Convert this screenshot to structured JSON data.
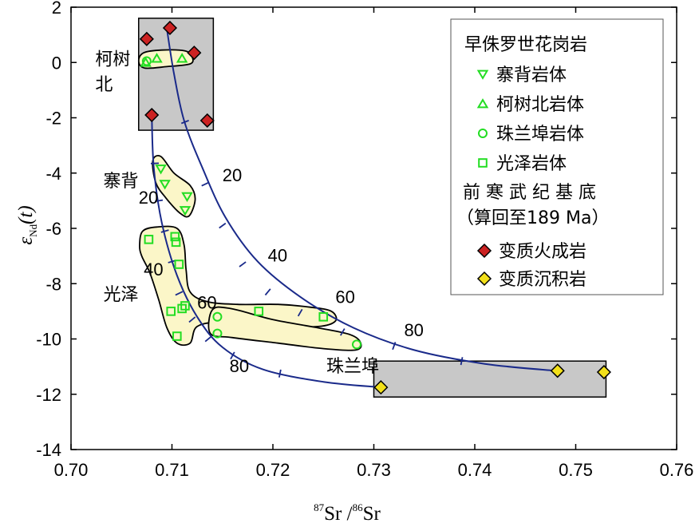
{
  "chart_data": {
    "type": "scatter",
    "xlabel": {
      "sup1": "87",
      "main1": "Sr",
      "sep": " /",
      "sup2": "86",
      "main2": "Sr"
    },
    "ylabel": {
      "eps": "ε",
      "sub": "Nd",
      "rest": "(t)"
    },
    "xlim": [
      0.7,
      0.76
    ],
    "ylim": [
      -14,
      2
    ],
    "xticks": [
      0.7,
      0.71,
      0.72,
      0.73,
      0.74,
      0.75,
      0.76
    ],
    "yticks": [
      2,
      0,
      -2,
      -4,
      -6,
      -8,
      -10,
      -12,
      -14
    ],
    "xtick_labels": [
      "0.70",
      "0.71",
      "0.72",
      "0.73",
      "0.74",
      "0.75",
      "0.76"
    ],
    "ytick_labels": [
      "2",
      "0",
      "-2",
      "-4",
      "-6",
      "-8",
      "-10",
      "-12",
      "-14"
    ],
    "legend": {
      "title": "早侏罗世花岗岩",
      "entries": [
        {
          "label": "寨背岩体",
          "marker": "triangle-down",
          "color": "#22dd22"
        },
        {
          "label": "柯树北岩体",
          "marker": "triangle-up",
          "color": "#22dd22"
        },
        {
          "label": "珠兰埠岩体",
          "marker": "circle",
          "color": "#22dd22"
        },
        {
          "label": "光泽岩体",
          "marker": "square",
          "color": "#22dd22"
        }
      ],
      "basement_title": "前 寒 武 纪 基 底",
      "basement_subtitle": "（算回至189 Ma）",
      "basement_entries": [
        {
          "label": "变质火成岩",
          "marker": "diamond",
          "color": "#cc2222"
        },
        {
          "label": "变质沉积岩",
          "marker": "diamond",
          "color": "#f2e01a"
        }
      ]
    },
    "region_labels": [
      {
        "text": "柯树",
        "x": 0.7024,
        "y": -0.1
      },
      {
        "text": "北",
        "x": 0.7024,
        "y": -1.0
      },
      {
        "text": "寨背",
        "x": 0.7032,
        "y": -4.5
      },
      {
        "text": "光泽",
        "x": 0.7032,
        "y": -8.6
      },
      {
        "text": "珠兰埠",
        "x": 0.7253,
        "y": -11.2
      }
    ],
    "curve_labels": [
      {
        "text": "20",
        "x": 0.715,
        "y": -4.3
      },
      {
        "text": "20",
        "x": 0.7067,
        "y": -5.1
      },
      {
        "text": "40",
        "x": 0.7195,
        "y": -7.2
      },
      {
        "text": "40",
        "x": 0.7072,
        "y": -7.7
      },
      {
        "text": "60",
        "x": 0.7262,
        "y": -8.7
      },
      {
        "text": "60",
        "x": 0.7125,
        "y": -8.9
      },
      {
        "text": "80",
        "x": 0.733,
        "y": -9.9
      },
      {
        "text": "80",
        "x": 0.7157,
        "y": -11.2
      }
    ],
    "series": [
      {
        "name": "寨背岩体",
        "marker": "triangle-down",
        "color": "#22dd22",
        "points": [
          [
            0.7089,
            -3.85
          ],
          [
            0.7093,
            -4.4
          ],
          [
            0.7115,
            -4.85
          ],
          [
            0.7113,
            -5.35
          ]
        ]
      },
      {
        "name": "柯树北岩体",
        "marker": "triangle-up",
        "color": "#22dd22",
        "points": [
          [
            0.7074,
            0.0
          ],
          [
            0.7085,
            0.15
          ],
          [
            0.711,
            0.15
          ]
        ]
      },
      {
        "name": "珠兰埠岩体",
        "marker": "circle",
        "color": "#22dd22",
        "points": [
          [
            0.7075,
            0.05
          ],
          [
            0.7145,
            -9.2
          ],
          [
            0.7145,
            -9.8
          ],
          [
            0.7283,
            -10.2
          ]
        ]
      },
      {
        "name": "光泽岩体",
        "marker": "square",
        "color": "#22dd22",
        "points": [
          [
            0.7077,
            -6.4
          ],
          [
            0.7103,
            -6.3
          ],
          [
            0.7104,
            -6.5
          ],
          [
            0.7107,
            -7.3
          ],
          [
            0.7105,
            -9.9
          ],
          [
            0.711,
            -8.9
          ],
          [
            0.7113,
            -8.8
          ],
          [
            0.7099,
            -9.0
          ],
          [
            0.7186,
            -9.0
          ],
          [
            0.725,
            -9.2
          ]
        ]
      },
      {
        "name": "变质火成岩",
        "marker": "diamond",
        "color": "#cc2222",
        "points": [
          [
            0.7075,
            0.85
          ],
          [
            0.7098,
            1.25
          ],
          [
            0.7122,
            0.35
          ],
          [
            0.708,
            -1.9
          ],
          [
            0.7135,
            -2.1
          ]
        ]
      },
      {
        "name": "变质沉积岩",
        "marker": "diamond",
        "color": "#f2e01a",
        "points": [
          [
            0.7307,
            -11.75
          ],
          [
            0.7482,
            -11.15
          ],
          [
            0.7528,
            -11.2
          ]
        ]
      }
    ],
    "mixing_curves": [
      {
        "name": "curve-outer",
        "points": [
          [
            0.7095,
            1.2
          ],
          [
            0.7102,
            -0.4
          ],
          [
            0.7112,
            -2.1
          ],
          [
            0.713,
            -3.8
          ],
          [
            0.7153,
            -5.6
          ],
          [
            0.7185,
            -7.2
          ],
          [
            0.7228,
            -8.5
          ],
          [
            0.728,
            -9.6
          ],
          [
            0.734,
            -10.4
          ],
          [
            0.741,
            -10.9
          ],
          [
            0.748,
            -11.15
          ]
        ],
        "tick_points": [
          [
            0.7113,
            -2.15
          ],
          [
            0.7133,
            -4.4
          ],
          [
            0.715,
            -5.9
          ],
          [
            0.717,
            -7.3
          ],
          [
            0.7195,
            -8.3
          ],
          [
            0.7227,
            -9.05
          ],
          [
            0.7269,
            -9.75
          ],
          [
            0.732,
            -10.25
          ],
          [
            0.7387,
            -10.8
          ]
        ]
      },
      {
        "name": "curve-inner",
        "points": [
          [
            0.708,
            -1.9
          ],
          [
            0.7082,
            -3.8
          ],
          [
            0.709,
            -5.8
          ],
          [
            0.7105,
            -7.7
          ],
          [
            0.7125,
            -9.2
          ],
          [
            0.715,
            -10.3
          ],
          [
            0.719,
            -11.1
          ],
          [
            0.725,
            -11.55
          ],
          [
            0.7307,
            -11.75
          ]
        ],
        "tick_points": [
          [
            0.7083,
            -3.65
          ],
          [
            0.7087,
            -5.0
          ],
          [
            0.7093,
            -6.1
          ],
          [
            0.71,
            -7.2
          ],
          [
            0.7107,
            -8.35
          ],
          [
            0.712,
            -9.3
          ],
          [
            0.7136,
            -10.0
          ],
          [
            0.716,
            -10.6
          ],
          [
            0.7207,
            -11.25
          ]
        ]
      }
    ],
    "grey_boxes": [
      {
        "name": "basement-igneous-box",
        "x": [
          0.7067,
          0.7141
        ],
        "y": [
          -2.45,
          1.6
        ]
      },
      {
        "name": "basement-sedimentary-box",
        "x": [
          0.73,
          0.753
        ],
        "y": [
          -12.1,
          -10.8
        ]
      }
    ],
    "sample_envelopes": [
      {
        "name": "keshubei-envelope",
        "points": [
          [
            0.7067,
            0.05
          ],
          [
            0.7072,
            0.35
          ],
          [
            0.709,
            0.45
          ],
          [
            0.7113,
            0.42
          ],
          [
            0.712,
            0.2
          ],
          [
            0.7118,
            -0.05
          ],
          [
            0.7095,
            -0.15
          ],
          [
            0.7073,
            -0.2
          ]
        ]
      },
      {
        "name": "zhaibei-envelope",
        "points": [
          [
            0.7081,
            -3.55
          ],
          [
            0.7089,
            -3.4
          ],
          [
            0.7102,
            -4.0
          ],
          [
            0.7118,
            -4.45
          ],
          [
            0.7123,
            -4.95
          ],
          [
            0.7117,
            -5.55
          ],
          [
            0.7108,
            -5.45
          ],
          [
            0.7094,
            -4.9
          ],
          [
            0.7084,
            -4.35
          ]
        ]
      },
      {
        "name": "guangze-envelope",
        "points": [
          [
            0.7068,
            -6.6
          ],
          [
            0.7071,
            -6.1
          ],
          [
            0.7085,
            -5.95
          ],
          [
            0.7105,
            -6.0
          ],
          [
            0.7112,
            -6.6
          ],
          [
            0.7114,
            -7.5
          ],
          [
            0.7118,
            -8.3
          ],
          [
            0.7135,
            -8.65
          ],
          [
            0.7165,
            -8.75
          ],
          [
            0.7205,
            -8.75
          ],
          [
            0.7237,
            -8.85
          ],
          [
            0.7258,
            -9.0
          ],
          [
            0.7262,
            -9.35
          ],
          [
            0.7245,
            -9.55
          ],
          [
            0.72,
            -9.55
          ],
          [
            0.715,
            -9.4
          ],
          [
            0.7125,
            -9.55
          ],
          [
            0.7118,
            -10.15
          ],
          [
            0.7105,
            -10.15
          ],
          [
            0.7095,
            -9.6
          ],
          [
            0.7087,
            -8.6
          ],
          [
            0.7078,
            -7.6
          ],
          [
            0.707,
            -7.0
          ]
        ]
      },
      {
        "name": "zhulanbu-envelope",
        "points": [
          [
            0.714,
            -8.95
          ],
          [
            0.7158,
            -8.9
          ],
          [
            0.72,
            -9.3
          ],
          [
            0.7245,
            -9.6
          ],
          [
            0.7277,
            -9.85
          ],
          [
            0.7287,
            -10.15
          ],
          [
            0.7282,
            -10.4
          ],
          [
            0.725,
            -10.35
          ],
          [
            0.7205,
            -10.15
          ],
          [
            0.716,
            -9.95
          ],
          [
            0.7138,
            -9.8
          ]
        ]
      }
    ]
  }
}
